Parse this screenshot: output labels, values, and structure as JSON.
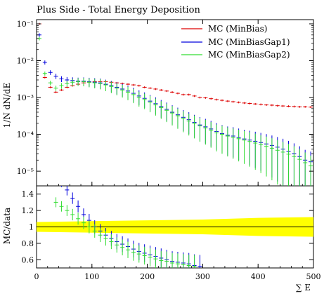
{
  "chart_data": [
    {
      "type": "scatter",
      "title": "Plus Side - Total Energy Deposition",
      "ylabel": "1/N dN/dE",
      "xlabel": "",
      "xlim": [
        0,
        500
      ],
      "ylim_log": [
        4e-06,
        0.13
      ],
      "log_y": true,
      "y_tick_labels": [
        "10⁻⁵",
        "10⁻⁴",
        "10⁻³",
        "10⁻²",
        "10⁻¹"
      ],
      "y_tick_values": [
        1e-05,
        0.0001,
        0.001,
        0.01,
        0.1
      ],
      "legend_position": "top-right",
      "series": [
        {
          "name": "MC (MinBias)",
          "color": "#dd0000",
          "x": [
            5,
            15,
            25,
            35,
            45,
            55,
            65,
            75,
            85,
            95,
            105,
            115,
            125,
            135,
            145,
            155,
            165,
            175,
            185,
            195,
            205,
            215,
            225,
            235,
            245,
            255,
            265,
            275,
            285,
            295,
            305,
            315,
            325,
            335,
            345,
            355,
            365,
            375,
            385,
            395,
            405,
            415,
            425,
            435,
            445,
            455,
            465,
            475,
            485,
            495
          ],
          "values": [
            0.1,
            0.0035,
            0.0019,
            0.0014,
            0.0016,
            0.0019,
            0.0021,
            0.0023,
            0.0025,
            0.0026,
            0.0027,
            0.0027,
            0.0027,
            0.0026,
            0.0025,
            0.0024,
            0.0023,
            0.0022,
            0.0021,
            0.0019,
            0.0018,
            0.0017,
            0.0016,
            0.0015,
            0.0014,
            0.0013,
            0.0012,
            0.0012,
            0.0011,
            0.001,
            0.00098,
            0.00093,
            0.00088,
            0.00084,
            0.0008,
            0.00077,
            0.00074,
            0.00071,
            0.00069,
            0.00067,
            0.00065,
            0.00063,
            0.00062,
            0.0006,
            0.00059,
            0.00058,
            0.00057,
            0.00056,
            0.00056,
            0.00055
          ]
        },
        {
          "name": "MC (MinBiasGap1)",
          "color": "#0000dd",
          "x": [
            5,
            15,
            25,
            35,
            45,
            55,
            65,
            75,
            85,
            95,
            105,
            115,
            125,
            135,
            145,
            155,
            165,
            175,
            185,
            195,
            205,
            215,
            225,
            235,
            245,
            255,
            265,
            275,
            285,
            295,
            305,
            315,
            325,
            335,
            345,
            355,
            365,
            375,
            385,
            395,
            405,
            415,
            425,
            435,
            445,
            455,
            465,
            475,
            485,
            495
          ],
          "values": [
            0.05,
            0.009,
            0.0048,
            0.0038,
            0.0032,
            0.003,
            0.0029,
            0.0028,
            0.0028,
            0.0027,
            0.0026,
            0.0025,
            0.0023,
            0.0021,
            0.0019,
            0.0017,
            0.0015,
            0.0013,
            0.0011,
            0.00095,
            0.0008,
            0.00068,
            0.00057,
            0.00048,
            0.0004,
            0.00034,
            0.00029,
            0.00025,
            0.00021,
            0.00018,
            0.00016,
            0.00014,
            0.00012,
            0.000105,
            9.5e-05,
            9e-05,
            8.2e-05,
            7.5e-05,
            7e-05,
            6.5e-05,
            6e-05,
            5.5e-05,
            5e-05,
            4.5e-05,
            4e-05,
            3.5e-05,
            3e-05,
            2.5e-05,
            2e-05,
            1.8e-05
          ]
        },
        {
          "name": "MC (MinBiasGap2)",
          "color": "#33dd33",
          "x": [
            5,
            15,
            25,
            35,
            45,
            55,
            65,
            75,
            85,
            95,
            105,
            115,
            125,
            135,
            145,
            155,
            165,
            175,
            185,
            195,
            205,
            215,
            225,
            235,
            245,
            255,
            265,
            275,
            285,
            295,
            305,
            315,
            325,
            335,
            345,
            355,
            365,
            375,
            385,
            395,
            405,
            415,
            425,
            435,
            445,
            455,
            465,
            475,
            485,
            495
          ],
          "values": [
            0.04,
            0.0045,
            0.0025,
            0.0018,
            0.0021,
            0.0024,
            0.0026,
            0.0027,
            0.0027,
            0.0026,
            0.0025,
            0.0024,
            0.0022,
            0.002,
            0.0018,
            0.0016,
            0.0014,
            0.0012,
            0.001,
            0.00088,
            0.00075,
            0.00063,
            0.00053,
            0.00045,
            0.00038,
            0.00032,
            0.00027,
            0.00023,
            0.0002,
            0.00017,
            0.00015,
            0.00013,
            0.00011,
            0.0001,
            9e-05,
            8.3e-05,
            7.6e-05,
            7e-05,
            6.4e-05,
            5.8e-05,
            5.2e-05,
            4.7e-05,
            4.2e-05,
            3.7e-05,
            3.3e-05,
            2.9e-05,
            2.5e-05,
            2.1e-05,
            1.7e-05,
            1.4e-05
          ]
        }
      ]
    },
    {
      "type": "scatter",
      "title": "",
      "ylabel": "MC/data",
      "xlabel": "∑ E",
      "xlim": [
        0,
        500
      ],
      "ylim": [
        0.5,
        1.5
      ],
      "x_ticks": [
        0,
        100,
        200,
        300,
        400,
        500
      ],
      "y_ticks": [
        0.6,
        0.8,
        1,
        1.2,
        1.4
      ],
      "band": {
        "color": "#ffff00",
        "x": [
          0,
          100,
          200,
          300,
          400,
          500
        ],
        "half_width": [
          0.06,
          0.07,
          0.08,
          0.09,
          0.11,
          0.12
        ]
      },
      "series": [
        {
          "name": "MC (MinBiasGap1)",
          "color": "#0000dd",
          "x": [
            45,
            55,
            65,
            75,
            85,
            95,
            105,
            115,
            125,
            135,
            145,
            155,
            165,
            175,
            185,
            195,
            205,
            215,
            225,
            235,
            245,
            255,
            265,
            275,
            285,
            295
          ],
          "values": [
            1.55,
            1.45,
            1.35,
            1.25,
            1.15,
            1.08,
            1.0,
            0.95,
            0.9,
            0.86,
            0.82,
            0.79,
            0.76,
            0.73,
            0.7,
            0.68,
            0.66,
            0.64,
            0.62,
            0.6,
            0.58,
            0.57,
            0.56,
            0.55,
            0.53,
            0.52
          ]
        },
        {
          "name": "MC (MinBiasGap2)",
          "color": "#33dd33",
          "x": [
            35,
            45,
            55,
            65,
            75,
            85,
            95,
            105,
            115,
            125,
            135,
            145,
            155,
            165,
            175,
            185,
            195,
            205,
            215,
            225,
            235,
            245,
            255,
            265,
            275,
            285
          ],
          "values": [
            1.3,
            1.25,
            1.2,
            1.15,
            1.1,
            1.05,
            1.0,
            0.95,
            0.9,
            0.86,
            0.82,
            0.78,
            0.75,
            0.72,
            0.69,
            0.67,
            0.65,
            0.63,
            0.61,
            0.59,
            0.58,
            0.56,
            0.55,
            0.54,
            0.53,
            0.52
          ]
        }
      ]
    }
  ]
}
